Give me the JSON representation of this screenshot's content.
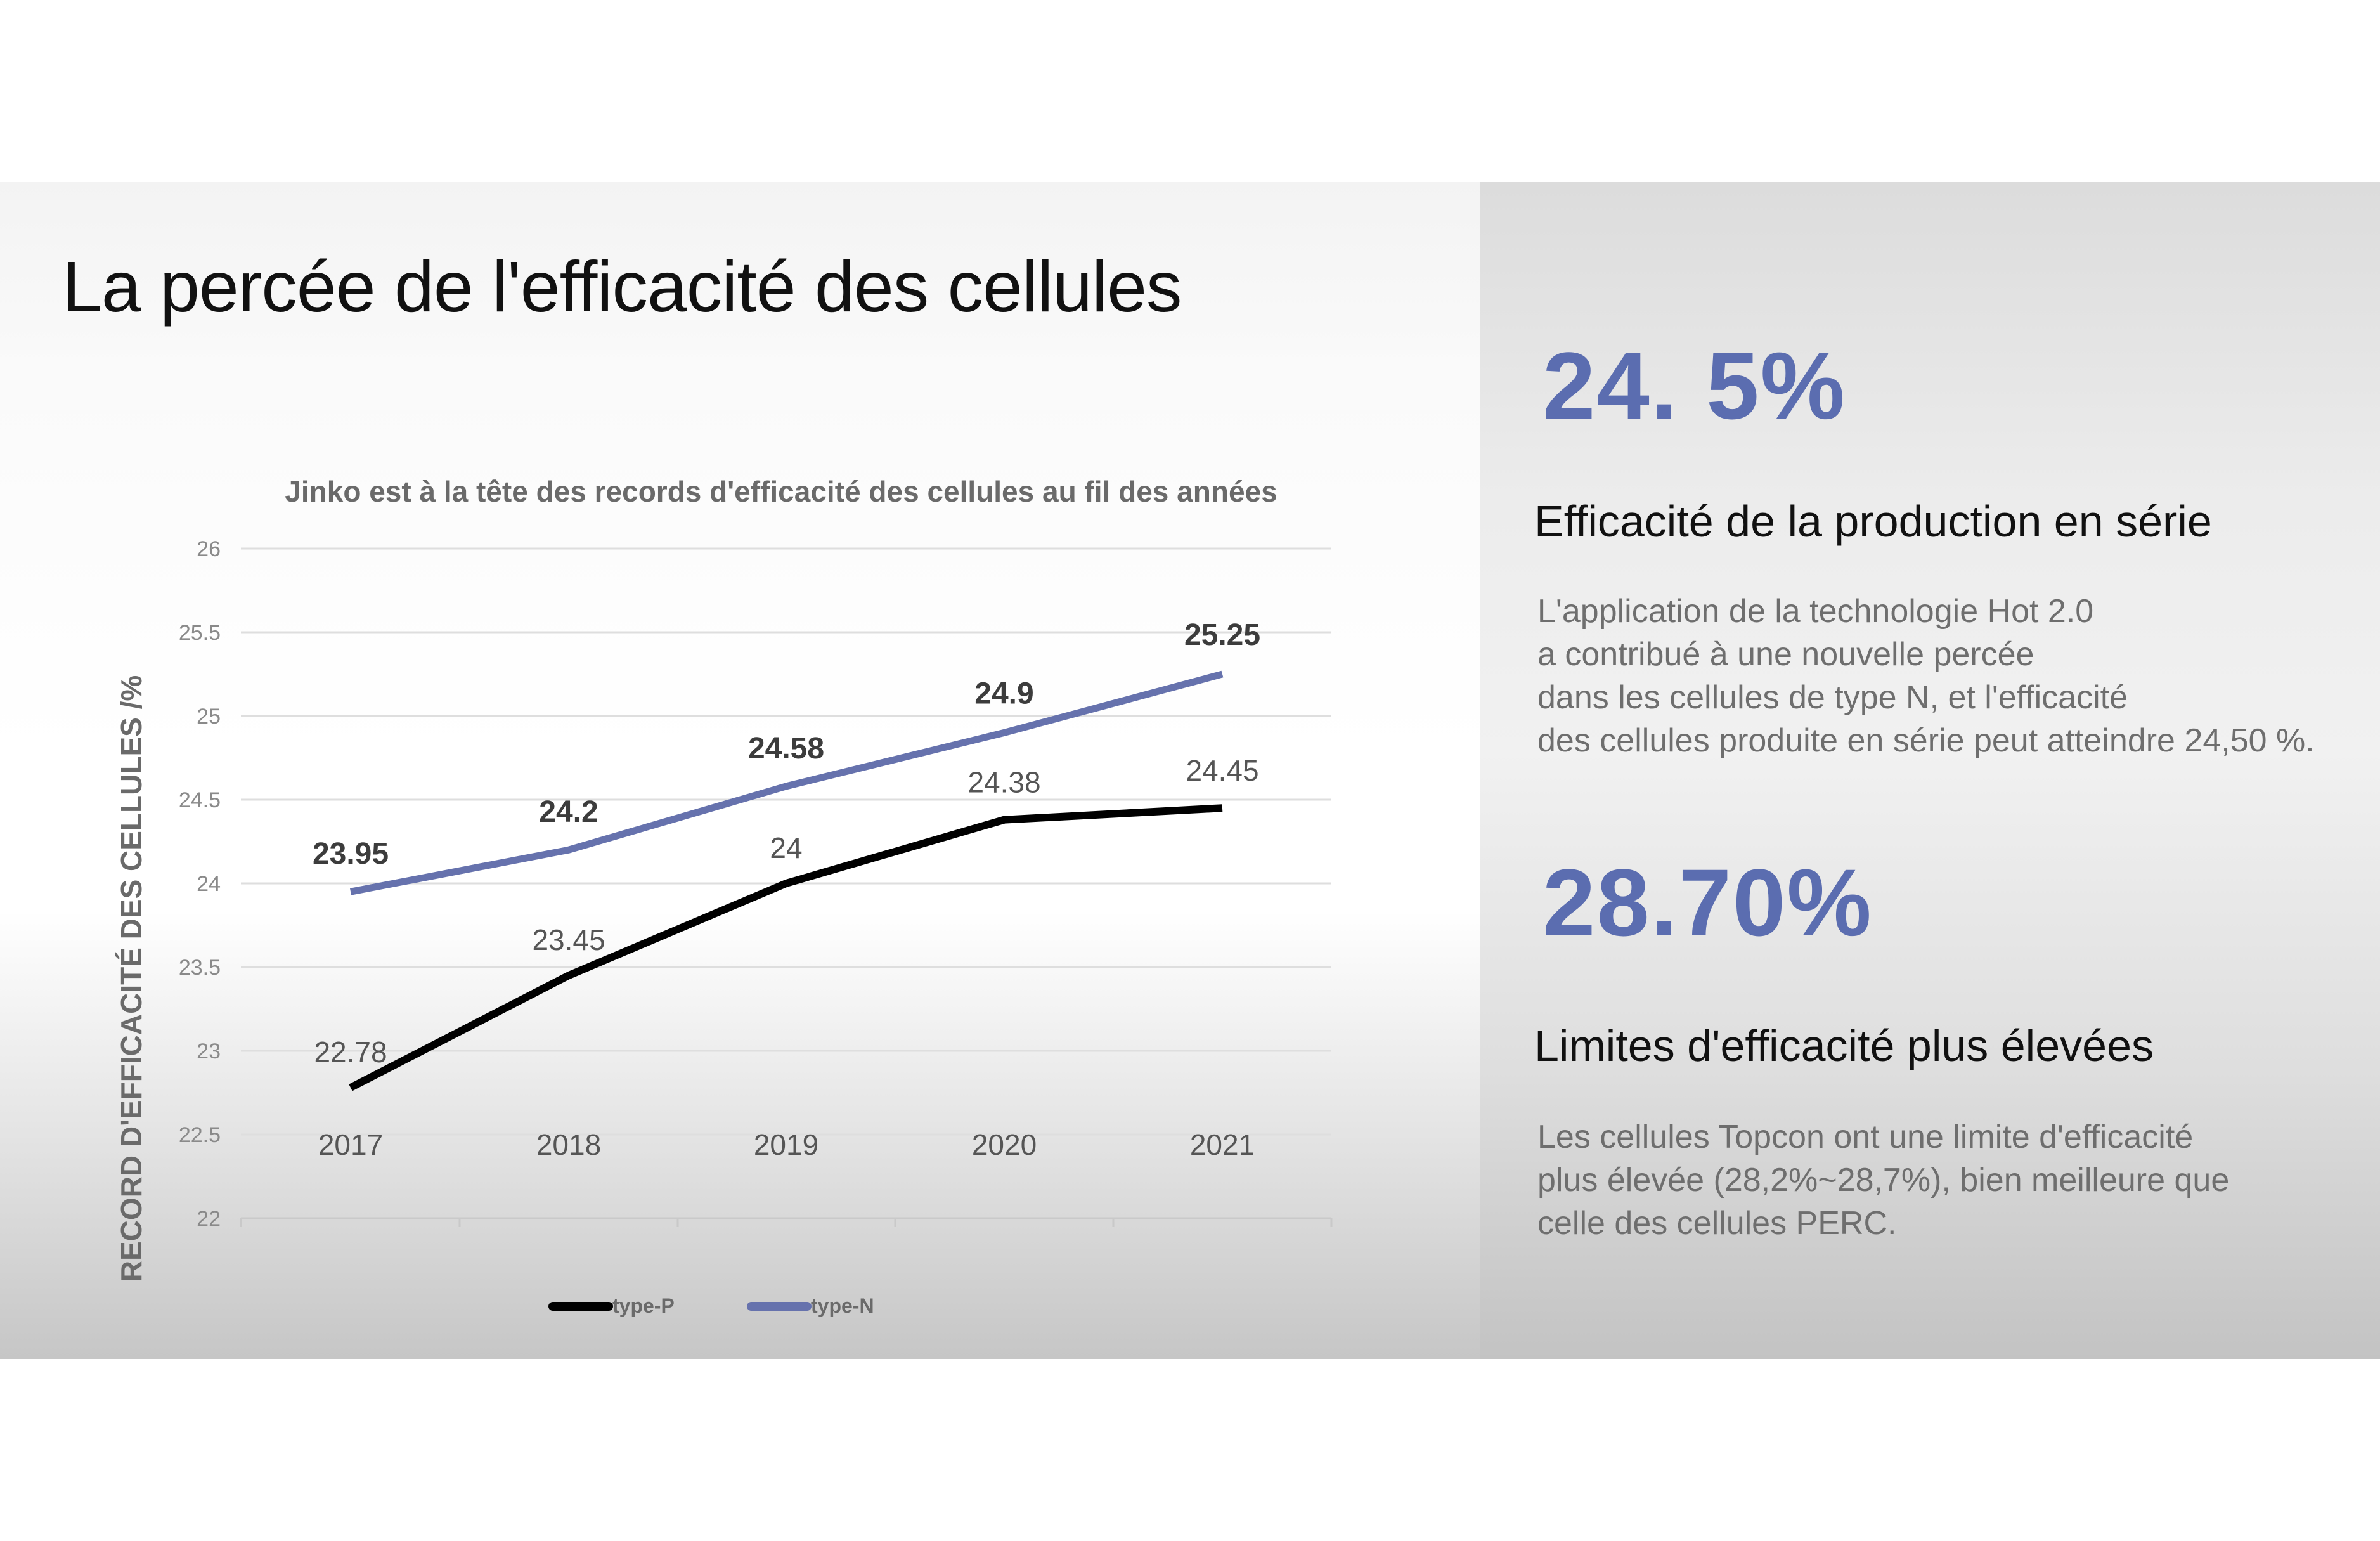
{
  "slide": {
    "title": "La percée de l'efficacité des cellules"
  },
  "colors": {
    "accent": "#5b6db0",
    "series_p": "#000000",
    "series_n": "#6672ad",
    "body_text": "#6e6e6e"
  },
  "chart_data": {
    "type": "line",
    "title": "Jinko est à la tête des records d'efficacité des cellules au fil des années",
    "xlabel": "",
    "ylabel": "RECORD D'EFFICACITÉ DES CELLULES /%",
    "categories": [
      "2017",
      "2018",
      "2019",
      "2020",
      "2021"
    ],
    "ylim": [
      22,
      26
    ],
    "yticks": [
      "22",
      "22.5",
      "23",
      "23.5",
      "24",
      "24.5",
      "25",
      "25.5",
      "26"
    ],
    "grid": true,
    "legend_position": "bottom",
    "series": [
      {
        "name": "type-P",
        "color": "#000000",
        "values": [
          22.78,
          23.45,
          24,
          24.38,
          24.45
        ],
        "labels": [
          "22.78",
          "23.45",
          "24",
          "24.38",
          "24.45"
        ]
      },
      {
        "name": "type-N",
        "color": "#6672ad",
        "values": [
          23.95,
          24.2,
          24.58,
          24.9,
          25.25
        ],
        "labels": [
          "23.95",
          "24.2",
          "24.58",
          "24.9",
          "25.25"
        ]
      }
    ]
  },
  "stats": [
    {
      "value": "24. 5%",
      "heading": "Efficacité de la production en série",
      "body": [
        "L'application de la technologie Hot 2.0",
        "a contribué à une nouvelle percée",
        "dans les cellules de type N, et l'efficacité",
        "des cellules produite en série peut atteindre 24,50 %."
      ]
    },
    {
      "value": "28.70%",
      "heading": "Limites d'efficacité plus élevées",
      "body": [
        "Les cellules Topcon ont une limite d'efficacité",
        "plus élevée (28,2%~28,7%), bien meilleure que",
        "celle des cellules PERC."
      ]
    }
  ]
}
